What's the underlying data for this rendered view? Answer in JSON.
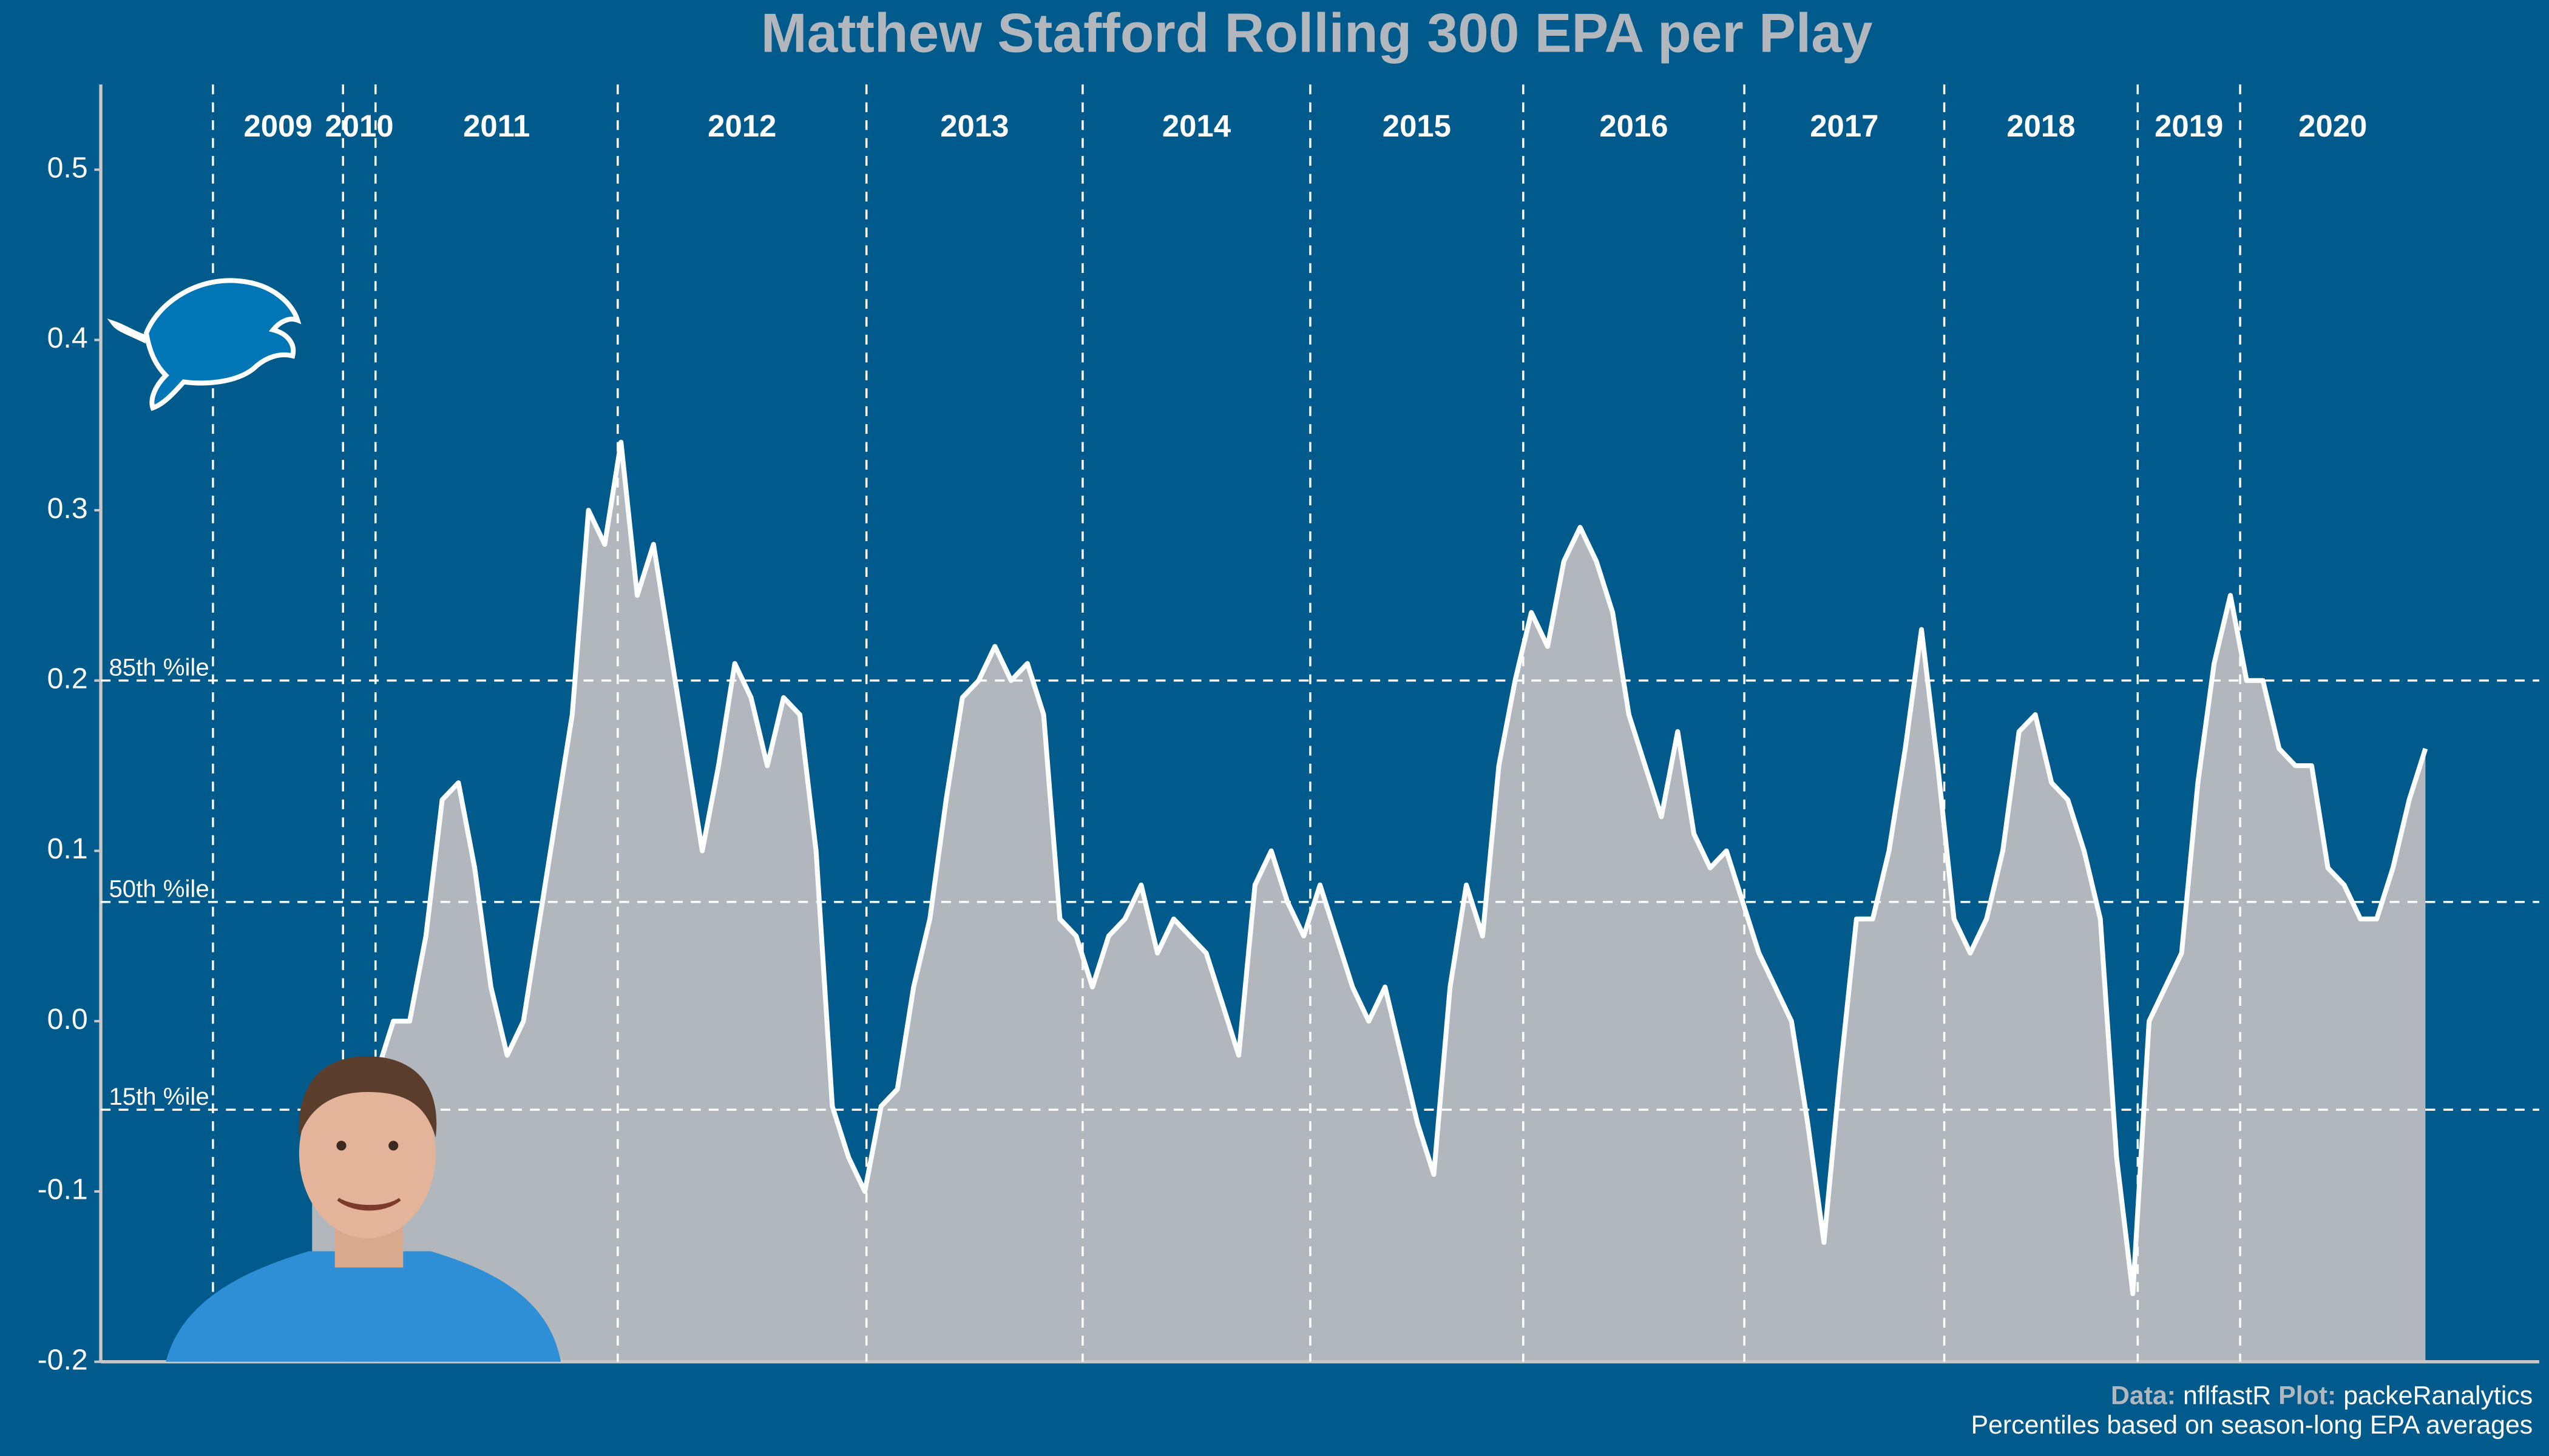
{
  "chart_data": {
    "type": "area",
    "title": "Matthew Stafford Rolling 300 EPA per Play",
    "caption_parts": [
      "Data:",
      "nflfastR",
      "Plot:",
      "packeRanalytics"
    ],
    "subcaption": "Percentiles based on season-long EPA averages",
    "color": "#b1b7bd",
    "line_color": "#ffffff",
    "background": "#015a8c",
    "xlim": [
      0,
      150
    ],
    "ylim": [
      -0.2,
      0.55
    ],
    "yticks": [
      -0.2,
      -0.1,
      {
        "value": 0,
        "label": "0.0"
      },
      0.1,
      0.2,
      0.3,
      0.4,
      0.5
    ],
    "seasons": [
      "2009",
      "2010",
      "2011",
      "2012",
      "2013",
      "2014",
      "2015",
      "2016",
      "2017",
      "2018",
      "2019",
      "2020"
    ],
    "season_starts": [
      6.9,
      14.9,
      16.9,
      31.8,
      47.1,
      60.4,
      74.4,
      87.5,
      101.1,
      113.4,
      125.3,
      131.6
    ],
    "percentiles": [
      {
        "value": 0.2,
        "label": "85th %ile"
      },
      {
        "value": 0.07,
        "label": "50th %ile"
      },
      {
        "value": -0.052,
        "label": "15th %ile"
      }
    ],
    "x": [
      13,
      14,
      15,
      16,
      17,
      18,
      19,
      20,
      21,
      22,
      23,
      24,
      25,
      26,
      27,
      28,
      29,
      30,
      31,
      32,
      33,
      34,
      35,
      36,
      37,
      38,
      39,
      40,
      41,
      42,
      43,
      44,
      45,
      46,
      47,
      48,
      49,
      50,
      51,
      52,
      53,
      54,
      55,
      56,
      57,
      58,
      59,
      60,
      61,
      62,
      63,
      64,
      65,
      66,
      67,
      68,
      69,
      70,
      71,
      72,
      73,
      74,
      75,
      76,
      77,
      78,
      79,
      80,
      81,
      82,
      83,
      84,
      85,
      86,
      87,
      88,
      89,
      90,
      91,
      92,
      93,
      94,
      95,
      96,
      97,
      98,
      99,
      100,
      101,
      102,
      103,
      104,
      105,
      106,
      107,
      108,
      109,
      110,
      111,
      112,
      113,
      114,
      115,
      116,
      117,
      118,
      119,
      120,
      121,
      122,
      123,
      124,
      125,
      126,
      127,
      128,
      129,
      130,
      131,
      132,
      133,
      134,
      135,
      136,
      137,
      138,
      139,
      140,
      141,
      142,
      143
    ],
    "values": [
      -0.1,
      -0.08,
      -0.05,
      -0.04,
      -0.03,
      0.0,
      0.0,
      0.05,
      0.13,
      0.14,
      0.09,
      0.02,
      -0.02,
      0.0,
      0.06,
      0.12,
      0.18,
      0.3,
      0.28,
      0.34,
      0.25,
      0.28,
      0.22,
      0.16,
      0.1,
      0.15,
      0.21,
      0.19,
      0.15,
      0.19,
      0.18,
      0.1,
      -0.05,
      -0.08,
      -0.1,
      -0.05,
      -0.04,
      0.02,
      0.06,
      0.13,
      0.19,
      0.2,
      0.22,
      0.2,
      0.21,
      0.18,
      0.06,
      0.05,
      0.02,
      0.05,
      0.06,
      0.08,
      0.04,
      0.06,
      0.05,
      0.04,
      0.01,
      -0.02,
      0.08,
      0.1,
      0.07,
      0.05,
      0.08,
      0.05,
      0.02,
      0.0,
      0.02,
      -0.02,
      -0.06,
      -0.09,
      0.02,
      0.08,
      0.05,
      0.15,
      0.2,
      0.24,
      0.22,
      0.27,
      0.29,
      0.27,
      0.24,
      0.18,
      0.15,
      0.12,
      0.17,
      0.11,
      0.09,
      0.1,
      0.07,
      0.04,
      0.02,
      0.0,
      -0.06,
      -0.13,
      -0.03,
      0.06,
      0.06,
      0.1,
      0.16,
      0.23,
      0.15,
      0.06,
      0.04,
      0.06,
      0.1,
      0.17,
      0.18,
      0.14,
      0.13,
      0.1,
      0.06,
      -0.08,
      -0.16,
      0.0,
      0.02,
      0.04,
      0.14,
      0.21,
      0.25,
      0.2,
      0.2,
      0.16,
      0.15,
      0.15,
      0.09,
      0.08,
      0.06,
      0.06,
      0.09,
      0.13,
      0.16
    ]
  }
}
